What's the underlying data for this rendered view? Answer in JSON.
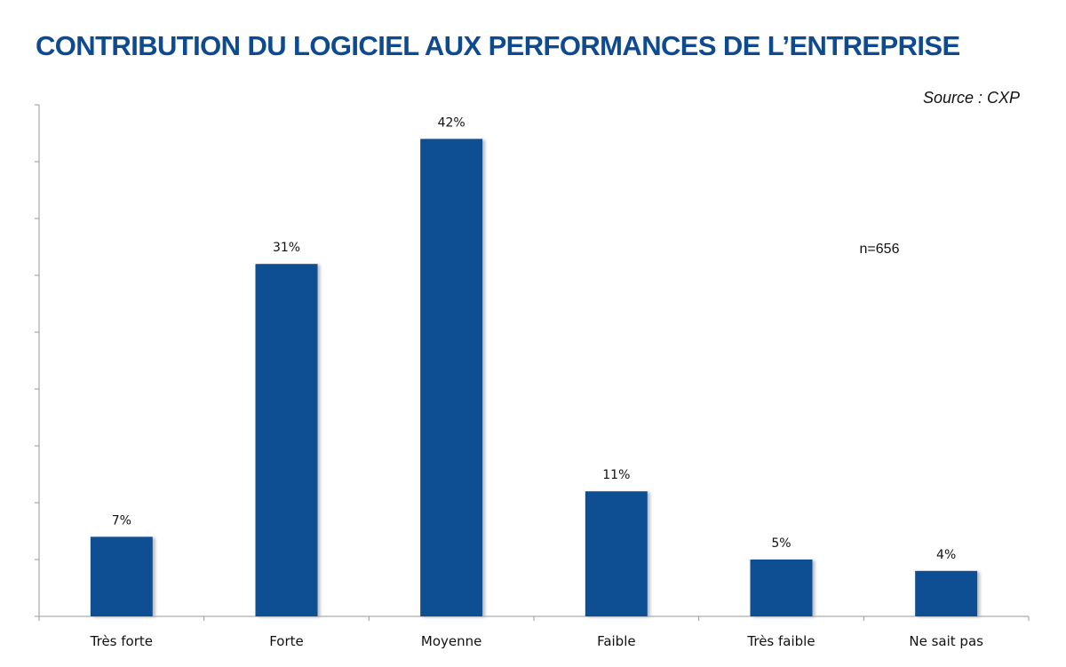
{
  "chart_data": {
    "type": "bar",
    "title": "CONTRIBUTION DU LOGICIEL AUX PERFORMANCES DE L’ENTREPRISE",
    "source": "Source : CXP",
    "note": "n=656",
    "categories": [
      "Très forte",
      "Forte",
      "Moyenne",
      "Faible",
      "Très faible",
      "Ne sait pas"
    ],
    "values": [
      7,
      31,
      42,
      11,
      5,
      4
    ],
    "value_labels": [
      "7%",
      "31%",
      "42%",
      "11%",
      "5%",
      "4%"
    ],
    "ylim": [
      0,
      45
    ],
    "y_ticks": [
      0,
      5,
      10,
      15,
      20,
      25,
      30,
      35,
      40,
      45
    ],
    "y_tick_labels_shown": false,
    "grid": false,
    "bar_color": "#0d5092",
    "title_color": "#0d4a8f"
  }
}
